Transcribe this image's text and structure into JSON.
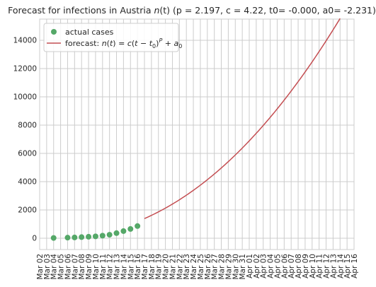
{
  "chart_data": {
    "type": "line",
    "title": "Forecast for infections in Austria n(t) (p = 2.197, c = 4.22, t0= -0.000, a0= -2.231)",
    "title_parts": {
      "prefix": "Forecast for infections in Austria ",
      "func": "n",
      "arg": "(t)",
      "params": " (p = 2.197, c = 4.22, t0= -0.000, a0= -2.231)"
    },
    "xlabel": "",
    "ylabel": "",
    "x_ticks": [
      "Mar 02",
      "Mar 03",
      "Mar 04",
      "Mar 05",
      "Mar 06",
      "Mar 07",
      "Mar 08",
      "Mar 09",
      "Mar 10",
      "Mar 11",
      "Mar 12",
      "Mar 13",
      "Mar 14",
      "Mar 15",
      "Mar 16",
      "Mar 17",
      "Mar 18",
      "Mar 19",
      "Mar 20",
      "Mar 21",
      "Mar 22",
      "Mar 23",
      "Mar 24",
      "Mar 25",
      "Mar 26",
      "Mar 27",
      "Mar 28",
      "Mar 29",
      "Mar 30",
      "Mar 31",
      "Apr 01",
      "Apr 02",
      "Apr 03",
      "Apr 04",
      "Apr 05",
      "Apr 06",
      "Apr 07",
      "Apr 08",
      "Apr 09",
      "Apr 10",
      "Apr 11",
      "Apr 12",
      "Apr 13",
      "Apr 14",
      "Apr 15",
      "Apr 16"
    ],
    "y_ticks": [
      0,
      2000,
      4000,
      6000,
      8000,
      10000,
      12000,
      14000
    ],
    "ylim": [
      -800,
      15500
    ],
    "xlim": [
      "Mar 02",
      "Apr 16"
    ],
    "grid": true,
    "legend_position": "top-left",
    "series": [
      {
        "name": "actual cases",
        "kind": "scatter",
        "color": "#55a868",
        "x": [
          "Mar 04",
          "Mar 06",
          "Mar 07",
          "Mar 08",
          "Mar 09",
          "Mar 10",
          "Mar 11",
          "Mar 12",
          "Mar 13",
          "Mar 14",
          "Mar 15",
          "Mar 16"
        ],
        "y": [
          18,
          41,
          55,
          79,
          104,
          131,
          182,
          246,
          361,
          504,
          655,
          860
        ]
      },
      {
        "name": "forecast",
        "legend_prefix": "forecast: ",
        "kind": "line",
        "color": "#c44e52",
        "model": {
          "p": 2.197,
          "c": 4.22,
          "t0": -0.0,
          "a0": -2.231,
          "t_start": "Mar 17",
          "t_end": "Apr 14"
        }
      }
    ]
  }
}
